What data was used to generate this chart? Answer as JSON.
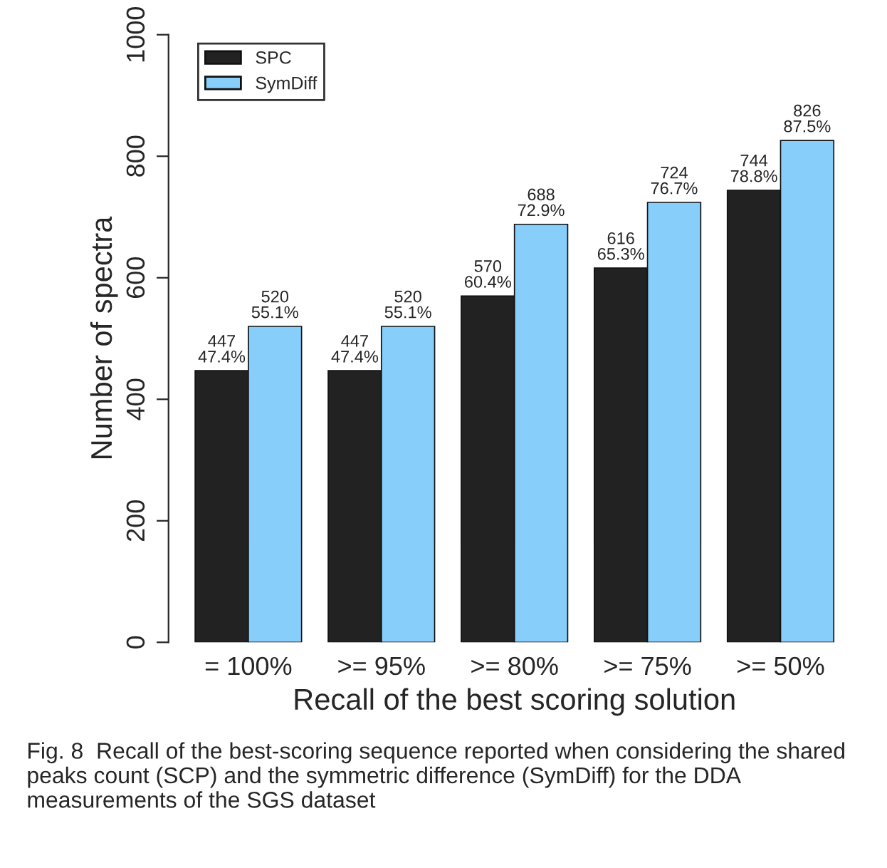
{
  "chart_data": {
    "type": "bar",
    "categories": [
      "= 100%",
      ">= 95%",
      ">= 80%",
      ">= 75%",
      ">= 50%"
    ],
    "series": [
      {
        "name": "SPC",
        "color": "#222222",
        "values": [
          447,
          447,
          570,
          616,
          744
        ],
        "value_labels": [
          "447\n47.4%",
          "447\n47.4%",
          "570\n60.4%",
          "616\n65.3%",
          "744\n78.8%"
        ]
      },
      {
        "name": "SymDiff",
        "color": "#87cefa",
        "values": [
          520,
          520,
          688,
          724,
          826
        ],
        "value_labels": [
          "520\n55.1%",
          "520\n55.1%",
          "688\n72.9%",
          "724\n76.7%",
          "826\n87.5%"
        ]
      }
    ],
    "xlabel": "Recall of the best scoring solution",
    "ylabel": "Number of spectra",
    "ylim": [
      0,
      1000
    ],
    "yticks": [
      0,
      200,
      400,
      600,
      800,
      1000
    ],
    "grid": false,
    "legend": "top left",
    "annotations": [
      "Fig. 8  Recall of the best-scoring sequence reported when considering the shared peaks count (SCP) and the symmetric difference (SymDiff) for the DDA measurements of the SGS dataset"
    ]
  }
}
